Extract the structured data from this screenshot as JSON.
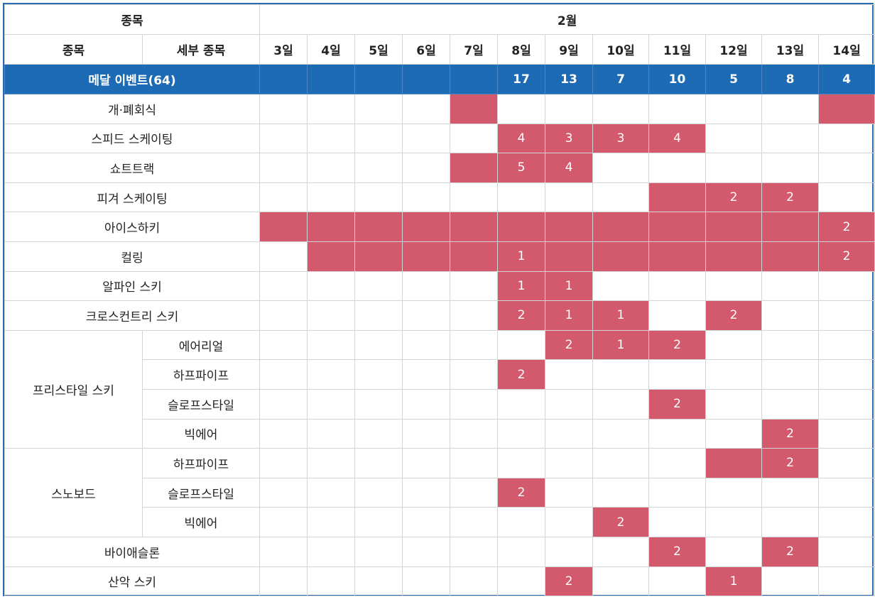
{
  "header": {
    "sport_col": "종목",
    "month": "2월",
    "sport_label": "종목",
    "sub_label": "세부 종목",
    "days": [
      "3일",
      "4일",
      "5일",
      "6일",
      "7일",
      "8일",
      "9일",
      "10일",
      "11일",
      "12일",
      "13일",
      "14일"
    ]
  },
  "medal_row": {
    "label": "메달 이벤트(64)",
    "counts": [
      "",
      "",
      "",
      "",
      "",
      "17",
      "13",
      "7",
      "10",
      "5",
      "8",
      "4"
    ]
  },
  "rows": [
    {
      "sport": "개·폐회식",
      "sub": null,
      "span": 1,
      "cells": [
        null,
        null,
        null,
        null,
        "",
        null,
        null,
        null,
        null,
        null,
        null,
        ""
      ]
    },
    {
      "sport": "스피드 스케이팅",
      "sub": null,
      "span": 1,
      "cells": [
        null,
        null,
        null,
        null,
        null,
        "4",
        "3",
        "3",
        "4",
        null,
        null,
        null
      ]
    },
    {
      "sport": "쇼트트랙",
      "sub": null,
      "span": 1,
      "cells": [
        null,
        null,
        null,
        null,
        "",
        "5",
        "4",
        null,
        null,
        null,
        null,
        null
      ]
    },
    {
      "sport": "피겨 스케이팅",
      "sub": null,
      "span": 1,
      "cells": [
        null,
        null,
        null,
        null,
        null,
        null,
        null,
        null,
        "",
        "2",
        "2",
        null
      ]
    },
    {
      "sport": "아이스하키",
      "sub": null,
      "span": 1,
      "cells": [
        "",
        "",
        "",
        "",
        "",
        "",
        "",
        "",
        "",
        "",
        "",
        "2"
      ]
    },
    {
      "sport": "컬링",
      "sub": null,
      "span": 1,
      "cells": [
        null,
        "",
        "",
        "",
        "",
        "1",
        "",
        "",
        "",
        "",
        "",
        "2"
      ]
    },
    {
      "sport": "알파인 스키",
      "sub": null,
      "span": 1,
      "cells": [
        null,
        null,
        null,
        null,
        null,
        "1",
        "1",
        null,
        null,
        null,
        null,
        null
      ]
    },
    {
      "sport": "크로스컨트리 스키",
      "sub": null,
      "span": 1,
      "cells": [
        null,
        null,
        null,
        null,
        null,
        "2",
        "1",
        "1",
        null,
        "2",
        null,
        null
      ]
    },
    {
      "sport": "프리스타일 스키",
      "sub": "에어리얼",
      "span": 4,
      "cells": [
        null,
        null,
        null,
        null,
        null,
        null,
        "2",
        "1",
        "2",
        null,
        null,
        null
      ]
    },
    {
      "sport": null,
      "sub": "하프파이프",
      "span": 0,
      "cells": [
        null,
        null,
        null,
        null,
        null,
        "2",
        null,
        null,
        null,
        null,
        null,
        null
      ]
    },
    {
      "sport": null,
      "sub": "슬로프스타일",
      "span": 0,
      "cells": [
        null,
        null,
        null,
        null,
        null,
        null,
        null,
        null,
        "2",
        null,
        null,
        null
      ]
    },
    {
      "sport": null,
      "sub": "빅에어",
      "span": 0,
      "cells": [
        null,
        null,
        null,
        null,
        null,
        null,
        null,
        null,
        null,
        null,
        "2",
        null
      ]
    },
    {
      "sport": "스노보드",
      "sub": "하프파이프",
      "span": 3,
      "cells": [
        null,
        null,
        null,
        null,
        null,
        null,
        null,
        null,
        null,
        "",
        "2",
        null
      ]
    },
    {
      "sport": null,
      "sub": "슬로프스타일",
      "span": 0,
      "cells": [
        null,
        null,
        null,
        null,
        null,
        "2",
        null,
        null,
        null,
        null,
        null,
        null
      ]
    },
    {
      "sport": null,
      "sub": "빅에어",
      "span": 0,
      "cells": [
        null,
        null,
        null,
        null,
        null,
        null,
        null,
        "2",
        null,
        null,
        null,
        null
      ]
    },
    {
      "sport": "바이애슬론",
      "sub": null,
      "span": 1,
      "cells": [
        null,
        null,
        null,
        null,
        null,
        null,
        null,
        null,
        "2",
        null,
        "2",
        null
      ]
    },
    {
      "sport": "산악 스키",
      "sub": null,
      "span": 1,
      "cells": [
        null,
        null,
        null,
        null,
        null,
        null,
        "2",
        null,
        null,
        "1",
        null,
        null
      ]
    }
  ],
  "colors": {
    "medal_bar": "#1e6bb5",
    "event_cell": "#d35a6d",
    "frame": "#2b6cb0"
  }
}
